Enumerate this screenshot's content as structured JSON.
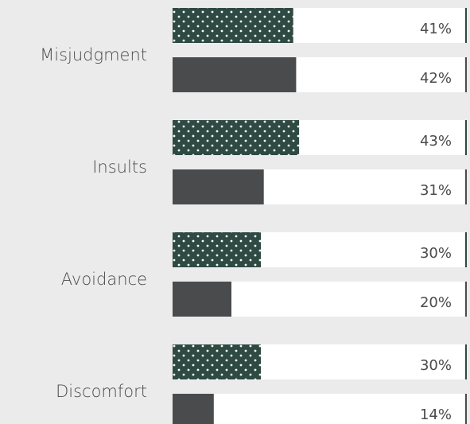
{
  "chart_data": {
    "type": "bar",
    "orientation": "horizontal",
    "categories": [
      "Misjudgment",
      "Insults",
      "Avoidance",
      "Discomfort"
    ],
    "series": [
      {
        "color": "#2e4a42",
        "values": [
          41,
          43,
          30,
          30
        ],
        "value_labels": [
          "41%",
          "43%",
          "30%",
          "30%"
        ]
      },
      {
        "color": "#4a4b4d",
        "values": [
          42,
          31,
          20,
          14
        ],
        "value_labels": [
          "42%",
          "31%",
          "20%",
          "14%"
        ]
      }
    ],
    "xlim": [
      0,
      100
    ]
  }
}
